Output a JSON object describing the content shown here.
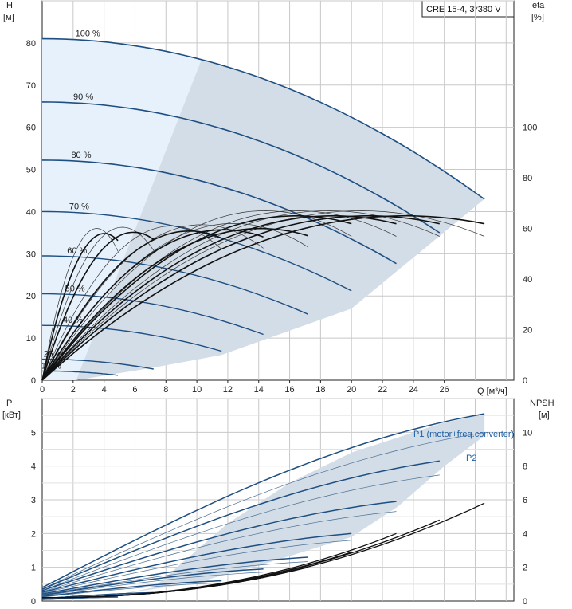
{
  "chart_data": [
    {
      "type": "line",
      "name": "head",
      "model": "CRE 15-4, 3*380 V",
      "x_label": "Q [м³/ч]",
      "y_label": [
        "H",
        "[м]"
      ],
      "y2_label": [
        "eta",
        "[%]"
      ],
      "xlim": [
        0,
        30.5
      ],
      "ylim": [
        0,
        90
      ],
      "y2lim": [
        0,
        150
      ],
      "x_ticks": [
        "0",
        "2",
        "4",
        "6",
        "8",
        "10",
        "12",
        "14",
        "16",
        "18",
        "20",
        "22",
        "24",
        "26"
      ],
      "y_ticks": [
        "0",
        "10",
        "20",
        "30",
        "40",
        "50",
        "60",
        "70",
        "80"
      ],
      "y2_ticks": [
        "0",
        "20",
        "40",
        "60",
        "80",
        "100"
      ],
      "speeds": [
        {
          "label": "100 %",
          "h0": 81.0,
          "qmax": 28.6
        },
        {
          "label": "90 %",
          "h0": 66.0,
          "qmax": 25.7
        },
        {
          "label": "80 %",
          "h0": 52.2,
          "qmax": 22.9
        },
        {
          "label": "70 %",
          "h0": 40.0,
          "qmax": 20.0
        },
        {
          "label": "60 %",
          "h0": 29.5,
          "qmax": 17.2
        },
        {
          "label": "50 %",
          "h0": 20.5,
          "qmax": 14.3
        },
        {
          "label": "40 %",
          "h0": 13.0,
          "qmax": 11.6
        },
        {
          "label": "25 %",
          "h0": 5.0,
          "qmax": 7.2
        },
        {
          "label": "17 %",
          "h0": 2.2,
          "qmax": 4.9
        }
      ],
      "eta_peak_percent": 67,
      "eta_peak_q": 20.5
    },
    {
      "type": "line",
      "name": "power",
      "x_label": "",
      "y_label": [
        "P",
        "[кВт]"
      ],
      "y2_label": [
        "NPSH",
        "[м]"
      ],
      "xlim": [
        0,
        30.5
      ],
      "ylim": [
        0,
        6
      ],
      "y2lim": [
        0,
        12
      ],
      "y_ticks": [
        "0",
        "1",
        "2",
        "3",
        "4",
        "5"
      ],
      "y2_ticks": [
        "0",
        "2",
        "4",
        "6",
        "8",
        "10"
      ],
      "series_labels": [
        "P1 (motor+freq.converter)",
        "P2"
      ],
      "p1_start": [
        2.0,
        1.75,
        1.55,
        1.3,
        1.05,
        0.85,
        0.65,
        0.35,
        0.22
      ],
      "p1_end": [
        5.55,
        4.15,
        2.95,
        2.0,
        1.3,
        0.95,
        0.6,
        0.25,
        0.12
      ],
      "npsh_end": [
        5.6,
        4.6,
        3.8,
        2.7,
        1.8,
        1.2
      ]
    }
  ]
}
